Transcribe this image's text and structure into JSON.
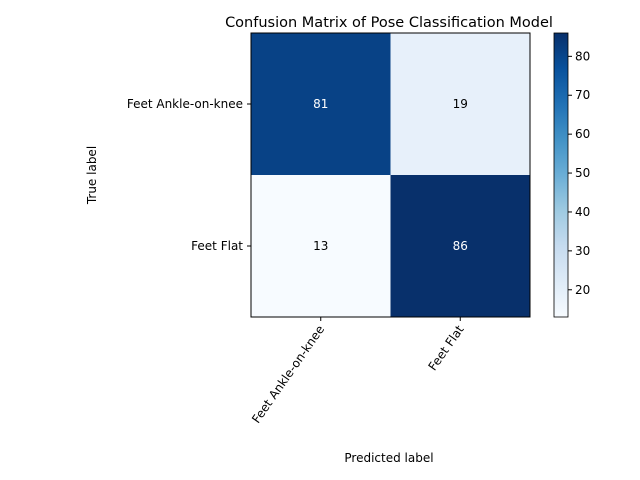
{
  "chart_data": {
    "type": "heatmap",
    "title": "Confusion Matrix of Pose Classification Model",
    "xlabel": "Predicted label",
    "ylabel": "True label",
    "x_categories": [
      "Feet Ankle-on-knee",
      "Feet Flat"
    ],
    "y_categories": [
      "Feet Ankle-on-knee",
      "Feet Flat"
    ],
    "matrix": [
      [
        81,
        19
      ],
      [
        13,
        86
      ]
    ],
    "value_range": [
      13,
      86
    ],
    "colormap": "Blues",
    "colorbar_ticks": [
      20,
      30,
      40,
      50,
      60,
      70,
      80
    ],
    "x_tick_rotation_deg": 55,
    "grid": false
  }
}
